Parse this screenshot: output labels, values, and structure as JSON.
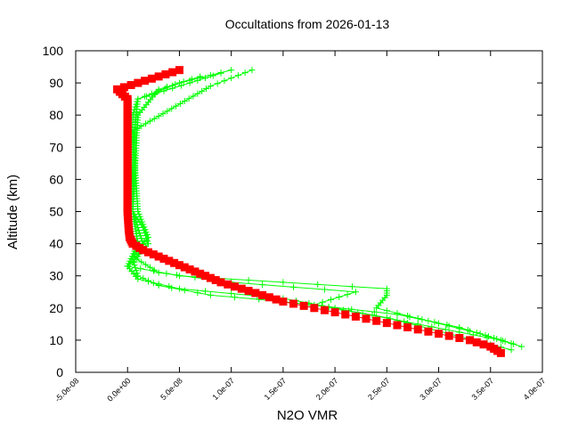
{
  "chart_data": {
    "type": "line",
    "title": "Occultations from 2026-01-13",
    "xlabel": "N2O VMR",
    "ylabel": "Altitude (km)",
    "xlim": [
      -5e-08,
      4e-07
    ],
    "ylim": [
      0,
      100
    ],
    "x_ticks": [
      "-5.0e-08",
      "0.0e+00",
      "5.0e-08",
      "1.0e-07",
      "1.5e-07",
      "2.0e-07",
      "2.5e-07",
      "3.0e-07",
      "3.5e-07",
      "4.0e-07"
    ],
    "x_tick_values": [
      -5e-08,
      0,
      5e-08,
      1e-07,
      1.5e-07,
      2e-07,
      2.5e-07,
      3e-07,
      3.5e-07,
      4e-07
    ],
    "y_ticks": [
      "0",
      "10",
      "20",
      "30",
      "40",
      "50",
      "60",
      "70",
      "80",
      "90",
      "100"
    ],
    "y_tick_values": [
      0,
      10,
      20,
      30,
      40,
      50,
      60,
      70,
      80,
      90,
      100
    ],
    "grid": false,
    "legend": "none",
    "series": [
      {
        "color": "#00ff00",
        "marker": "plus",
        "points": [
          [
            3.8e-07,
            8
          ],
          [
            3.4e-07,
            12
          ],
          [
            2.9e-07,
            16
          ],
          [
            2.4e-07,
            20
          ],
          [
            2.5e-07,
            24
          ],
          [
            2.5e-07,
            26
          ],
          [
            1.5e-07,
            28
          ],
          [
            5e-08,
            30
          ],
          [
            0,
            33
          ],
          [
            1e-08,
            36
          ],
          [
            1.5e-08,
            40
          ],
          [
            1e-08,
            45
          ],
          [
            5e-09,
            50
          ],
          [
            5e-09,
            60
          ],
          [
            5e-09,
            70
          ],
          [
            5e-09,
            80
          ],
          [
            1e-08,
            85
          ],
          [
            5e-08,
            90
          ],
          [
            1e-07,
            94
          ]
        ]
      },
      {
        "color": "#00ff00",
        "marker": "plus",
        "points": [
          [
            3.7e-07,
            9
          ],
          [
            3.2e-07,
            14
          ],
          [
            2.6e-07,
            18
          ],
          [
            1.5e-07,
            22
          ],
          [
            8e-08,
            24
          ],
          [
            3e-08,
            27
          ],
          [
            1e-08,
            30
          ],
          [
            5e-09,
            35
          ],
          [
            2e-08,
            40
          ],
          [
            1.5e-08,
            45
          ],
          [
            5e-09,
            50
          ],
          [
            5e-09,
            70
          ],
          [
            1e-08,
            85
          ],
          [
            6e-08,
            90
          ],
          [
            9e-08,
            93
          ]
        ]
      },
      {
        "color": "#00ff00",
        "marker": "plus",
        "points": [
          [
            3.6e-07,
            10
          ],
          [
            2.8e-07,
            15
          ],
          [
            2e-07,
            20
          ],
          [
            1.5e-07,
            23
          ],
          [
            5e-08,
            26
          ],
          [
            1e-08,
            29
          ],
          [
            0,
            33
          ],
          [
            1e-08,
            40
          ],
          [
            5e-09,
            50
          ],
          [
            1e-08,
            80
          ],
          [
            3e-08,
            88
          ],
          [
            7e-08,
            92
          ]
        ]
      },
      {
        "color": "#00ff00",
        "marker": "plus",
        "points": [
          [
            3.7e-07,
            7
          ],
          [
            3.1e-07,
            12
          ],
          [
            2.5e-07,
            17
          ],
          [
            1.8e-07,
            21
          ],
          [
            2.2e-07,
            25
          ],
          [
            1e-07,
            28
          ],
          [
            3e-08,
            31
          ],
          [
            5e-09,
            36
          ],
          [
            2e-08,
            42
          ],
          [
            1e-08,
            50
          ],
          [
            5e-09,
            75
          ],
          [
            8e-08,
            89
          ],
          [
            1.2e-07,
            94
          ]
        ]
      },
      {
        "color": "#ff0000",
        "marker": "square",
        "points": [
          [
            3.6e-07,
            6
          ],
          [
            3.5e-07,
            8
          ],
          [
            3.3e-07,
            10
          ],
          [
            3e-07,
            12
          ],
          [
            2.7e-07,
            14
          ],
          [
            2.4e-07,
            16
          ],
          [
            2.1e-07,
            18
          ],
          [
            1.8e-07,
            20
          ],
          [
            1.5e-07,
            22
          ],
          [
            1.3e-07,
            24
          ],
          [
            1.1e-07,
            26
          ],
          [
            9e-08,
            28
          ],
          [
            7.5e-08,
            30
          ],
          [
            6e-08,
            32
          ],
          [
            4.5e-08,
            34
          ],
          [
            3e-08,
            36
          ],
          [
            1.5e-08,
            38
          ],
          [
            5e-09,
            40
          ],
          [
            2e-09,
            42
          ],
          [
            1e-09,
            45
          ],
          [
            0,
            50
          ],
          [
            0,
            60
          ],
          [
            0,
            70
          ],
          [
            0,
            80
          ],
          [
            0,
            85
          ],
          [
            -1e-08,
            88
          ],
          [
            1e-08,
            90
          ],
          [
            3e-08,
            92
          ],
          [
            5e-08,
            94
          ]
        ]
      }
    ]
  }
}
